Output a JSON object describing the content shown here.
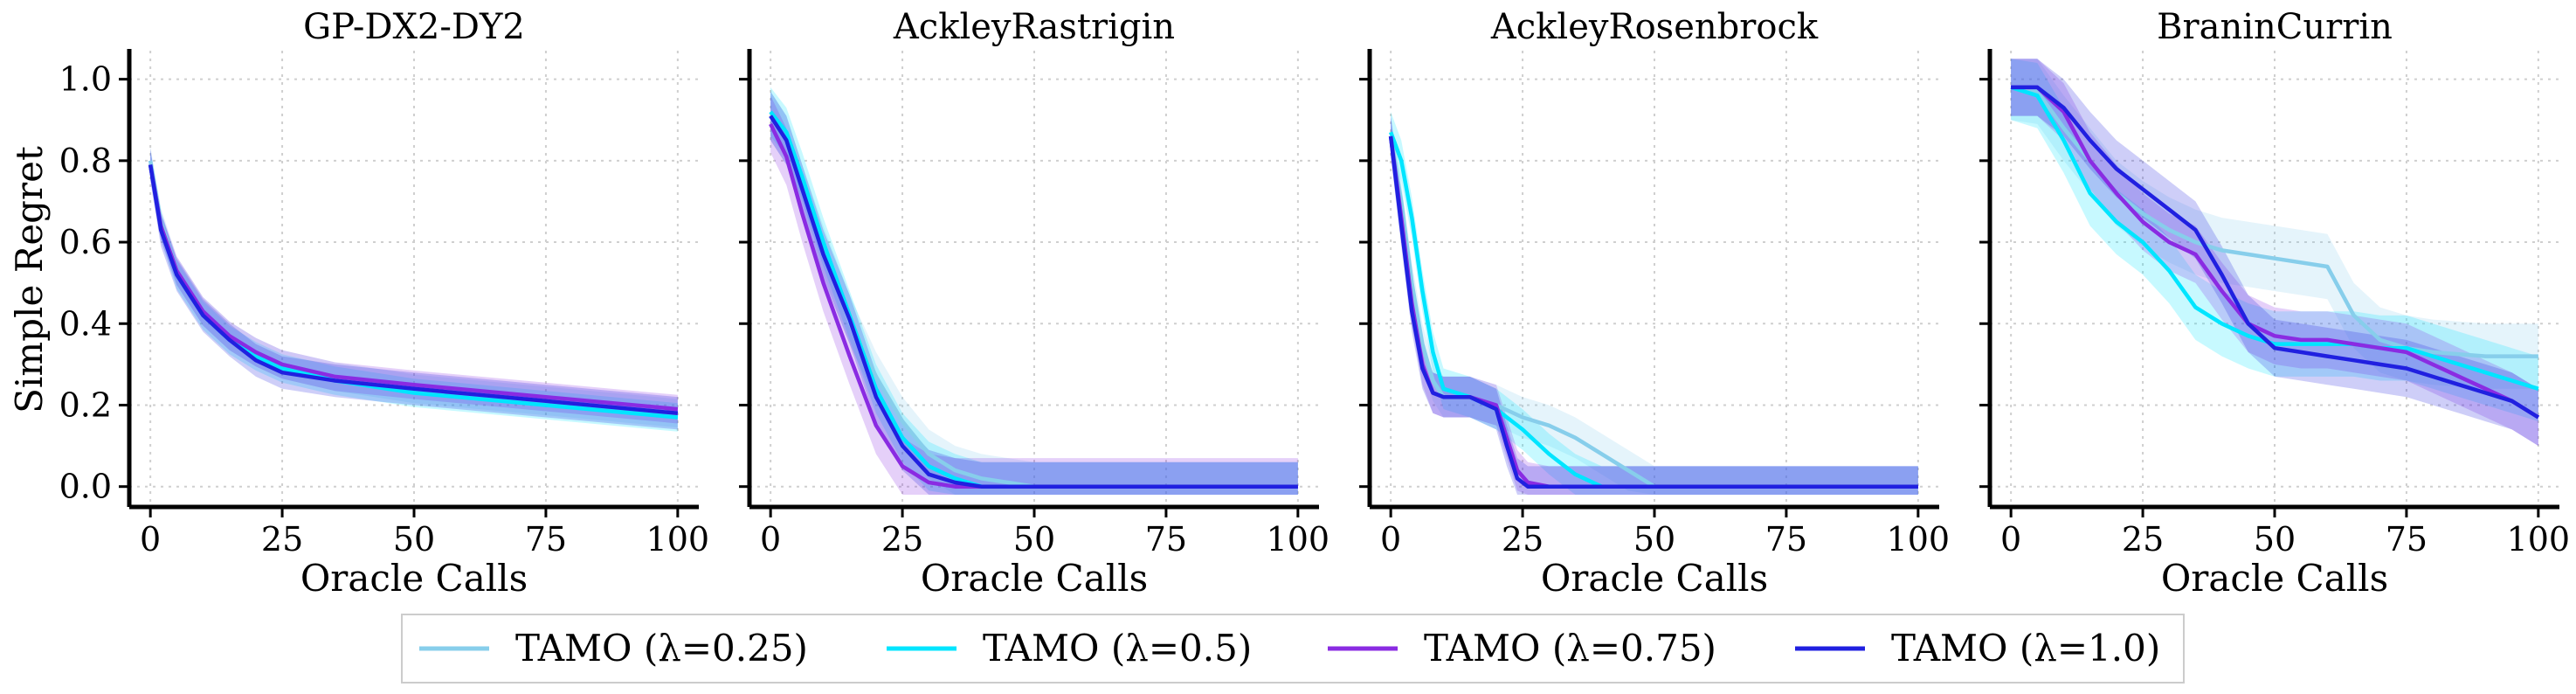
{
  "chart_data": {
    "type": "line",
    "ylabel": "Simple Regret",
    "xlabel": "Oracle Calls",
    "xlim": [
      -4,
      104
    ],
    "ylim": [
      -0.05,
      1.07
    ],
    "xticks": [
      0,
      25,
      50,
      75,
      100
    ],
    "yticks": [
      0.0,
      0.2,
      0.4,
      0.6,
      0.8,
      1.0
    ],
    "ytick_labels": [
      "0.0",
      "0.2",
      "0.4",
      "0.6",
      "0.8",
      "1.0"
    ],
    "grid": true,
    "legend": {
      "placement": "bottom-center",
      "entries": [
        "TAMO (λ=0.25)",
        "TAMO (λ=0.5)",
        "TAMO (λ=0.75)",
        "TAMO (λ=1.0)"
      ]
    },
    "series_styles": [
      {
        "name": "TAMO (λ=0.25)",
        "color": "#87ceeb"
      },
      {
        "name": "TAMO (λ=0.5)",
        "color": "#00e5ff"
      },
      {
        "name": "TAMO (λ=0.75)",
        "color": "#8a2be2"
      },
      {
        "name": "TAMO (λ=1.0)",
        "color": "#2020e0"
      }
    ],
    "panels": [
      {
        "title": "GP-DX2-DY2",
        "series": [
          {
            "name": "TAMO (λ=0.25)",
            "x": [
              0,
              2,
              5,
              10,
              15,
              20,
              25,
              35,
              50,
              75,
              100
            ],
            "y": [
              0.8,
              0.65,
              0.53,
              0.43,
              0.37,
              0.33,
              0.3,
              0.27,
              0.24,
              0.21,
              0.18
            ],
            "band": 0.035
          },
          {
            "name": "TAMO (λ=0.5)",
            "x": [
              0,
              2,
              5,
              10,
              15,
              20,
              25,
              35,
              50,
              75,
              100
            ],
            "y": [
              0.79,
              0.64,
              0.52,
              0.42,
              0.36,
              0.32,
              0.29,
              0.26,
              0.23,
              0.2,
              0.17
            ],
            "band": 0.035
          },
          {
            "name": "TAMO (λ=0.75)",
            "x": [
              0,
              2,
              5,
              10,
              15,
              20,
              25,
              35,
              50,
              75,
              100
            ],
            "y": [
              0.79,
              0.64,
              0.53,
              0.43,
              0.37,
              0.33,
              0.3,
              0.27,
              0.25,
              0.22,
              0.19
            ],
            "band": 0.035
          },
          {
            "name": "TAMO (λ=1.0)",
            "x": [
              0,
              2,
              5,
              10,
              15,
              20,
              25,
              35,
              50,
              75,
              100
            ],
            "y": [
              0.79,
              0.63,
              0.52,
              0.42,
              0.36,
              0.31,
              0.28,
              0.26,
              0.24,
              0.21,
              0.18
            ],
            "band": 0.04
          }
        ]
      },
      {
        "title": "AckleyRastrigin",
        "series": [
          {
            "name": "TAMO (λ=0.25)",
            "x": [
              0,
              3,
              6,
              10,
              15,
              20,
              25,
              30,
              35,
              40,
              45,
              50,
              100
            ],
            "y": [
              0.91,
              0.85,
              0.73,
              0.58,
              0.41,
              0.27,
              0.16,
              0.08,
              0.04,
              0.02,
              0.01,
              0.0,
              0.0
            ],
            "band": 0.06
          },
          {
            "name": "TAMO (λ=0.5)",
            "x": [
              0,
              3,
              6,
              10,
              15,
              20,
              25,
              30,
              35,
              40,
              50,
              100
            ],
            "y": [
              0.92,
              0.87,
              0.76,
              0.6,
              0.42,
              0.24,
              0.12,
              0.05,
              0.02,
              0.0,
              0.0,
              0.0
            ],
            "band": 0.06
          },
          {
            "name": "TAMO (λ=0.75)",
            "x": [
              0,
              3,
              6,
              10,
              15,
              20,
              25,
              30,
              35,
              40,
              100
            ],
            "y": [
              0.89,
              0.81,
              0.67,
              0.5,
              0.32,
              0.15,
              0.05,
              0.01,
              0.0,
              0.0,
              0.0
            ],
            "band": 0.07
          },
          {
            "name": "TAMO (λ=1.0)",
            "x": [
              0,
              3,
              6,
              10,
              15,
              20,
              25,
              30,
              35,
              40,
              100
            ],
            "y": [
              0.91,
              0.85,
              0.73,
              0.57,
              0.41,
              0.22,
              0.1,
              0.03,
              0.01,
              0.0,
              0.0
            ],
            "band": 0.06
          }
        ]
      },
      {
        "title": "AckleyRosenbrock",
        "series": [
          {
            "name": "TAMO (λ=0.25)",
            "x": [
              0,
              2,
              4,
              6,
              8,
              10,
              15,
              20,
              25,
              30,
              35,
              40,
              45,
              50,
              100
            ],
            "y": [
              0.86,
              0.7,
              0.5,
              0.35,
              0.26,
              0.22,
              0.22,
              0.2,
              0.17,
              0.15,
              0.12,
              0.08,
              0.04,
              0.0,
              0.0
            ],
            "band": 0.05
          },
          {
            "name": "TAMO (λ=0.5)",
            "x": [
              0,
              2,
              4,
              6,
              8,
              10,
              15,
              20,
              25,
              30,
              35,
              40,
              100
            ],
            "y": [
              0.87,
              0.8,
              0.66,
              0.48,
              0.33,
              0.24,
              0.22,
              0.19,
              0.14,
              0.08,
              0.03,
              0.0,
              0.0
            ],
            "band": 0.05
          },
          {
            "name": "TAMO (λ=0.75)",
            "x": [
              0,
              2,
              4,
              6,
              8,
              10,
              15,
              20,
              22,
              24,
              26,
              30,
              100
            ],
            "y": [
              0.86,
              0.66,
              0.45,
              0.3,
              0.23,
              0.22,
              0.22,
              0.2,
              0.12,
              0.04,
              0.01,
              0.0,
              0.0
            ],
            "band": 0.05
          },
          {
            "name": "TAMO (λ=1.0)",
            "x": [
              0,
              2,
              4,
              6,
              8,
              10,
              15,
              20,
              22,
              24,
              26,
              28,
              100
            ],
            "y": [
              0.86,
              0.64,
              0.43,
              0.29,
              0.23,
              0.22,
              0.22,
              0.19,
              0.1,
              0.02,
              0.0,
              0.0,
              0.0
            ],
            "band": 0.05
          }
        ]
      },
      {
        "title": "BraninCurrin",
        "series": [
          {
            "name": "TAMO (λ=0.25)",
            "x": [
              0,
              5,
              10,
              15,
              20,
              25,
              30,
              35,
              40,
              45,
              50,
              60,
              65,
              70,
              75,
              80,
              90,
              100
            ],
            "y": [
              0.98,
              0.97,
              0.88,
              0.8,
              0.72,
              0.67,
              0.63,
              0.6,
              0.58,
              0.57,
              0.56,
              0.54,
              0.42,
              0.36,
              0.34,
              0.33,
              0.32,
              0.32
            ],
            "band": 0.08
          },
          {
            "name": "TAMO (λ=0.5)",
            "x": [
              0,
              5,
              10,
              15,
              20,
              25,
              30,
              35,
              40,
              45,
              50,
              55,
              60,
              65,
              70,
              75,
              80,
              85,
              90,
              95,
              100
            ],
            "y": [
              0.98,
              0.96,
              0.85,
              0.72,
              0.65,
              0.6,
              0.53,
              0.44,
              0.4,
              0.37,
              0.35,
              0.35,
              0.35,
              0.35,
              0.34,
              0.34,
              0.32,
              0.3,
              0.28,
              0.26,
              0.24
            ],
            "band": 0.08
          },
          {
            "name": "TAMO (λ=0.75)",
            "x": [
              0,
              5,
              10,
              15,
              20,
              25,
              30,
              35,
              40,
              45,
              50,
              55,
              60,
              65,
              70,
              75,
              80,
              85,
              90,
              95,
              100
            ],
            "y": [
              0.98,
              0.98,
              0.92,
              0.8,
              0.72,
              0.65,
              0.6,
              0.57,
              0.48,
              0.4,
              0.37,
              0.36,
              0.36,
              0.35,
              0.34,
              0.33,
              0.3,
              0.27,
              0.24,
              0.21,
              0.17
            ],
            "band": 0.07
          },
          {
            "name": "TAMO (λ=1.0)",
            "x": [
              0,
              5,
              10,
              15,
              20,
              25,
              30,
              35,
              40,
              45,
              50,
              55,
              60,
              65,
              70,
              75,
              80,
              85,
              90,
              95,
              100
            ],
            "y": [
              0.98,
              0.98,
              0.93,
              0.85,
              0.78,
              0.73,
              0.68,
              0.63,
              0.52,
              0.4,
              0.34,
              0.33,
              0.32,
              0.31,
              0.3,
              0.29,
              0.27,
              0.25,
              0.23,
              0.21,
              0.17
            ],
            "band": 0.07
          }
        ]
      }
    ]
  }
}
